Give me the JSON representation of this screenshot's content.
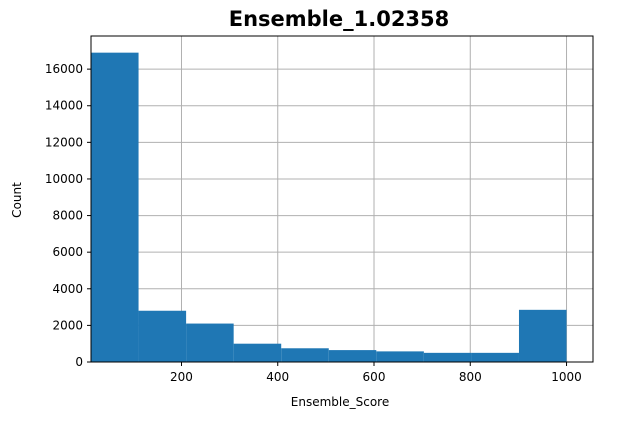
{
  "chart_data": {
    "type": "bar",
    "title": "Ensemble_1.02358",
    "xlabel": "Ensemble_Score",
    "ylabel": "Count",
    "xlim": [
      12,
      1055
    ],
    "ylim": [
      0,
      17810
    ],
    "grid": true,
    "bar_color": "#1f77b4",
    "bins": [
      {
        "x0": 12.0,
        "x1": 110.8,
        "count": 16900
      },
      {
        "x0": 110.8,
        "x1": 209.6,
        "count": 2800
      },
      {
        "x0": 209.6,
        "x1": 308.4,
        "count": 2100
      },
      {
        "x0": 308.4,
        "x1": 407.2,
        "count": 1000
      },
      {
        "x0": 407.2,
        "x1": 506.0,
        "count": 750
      },
      {
        "x0": 506.0,
        "x1": 604.8,
        "count": 650
      },
      {
        "x0": 604.8,
        "x1": 703.6,
        "count": 580
      },
      {
        "x0": 703.6,
        "x1": 802.4,
        "count": 500
      },
      {
        "x0": 802.4,
        "x1": 901.2,
        "count": 500
      },
      {
        "x0": 901.2,
        "x1": 1000.0,
        "count": 2850
      }
    ],
    "xticks": [
      200,
      400,
      600,
      800,
      1000
    ],
    "yticks": [
      0,
      2000,
      4000,
      6000,
      8000,
      10000,
      12000,
      14000,
      16000
    ]
  }
}
